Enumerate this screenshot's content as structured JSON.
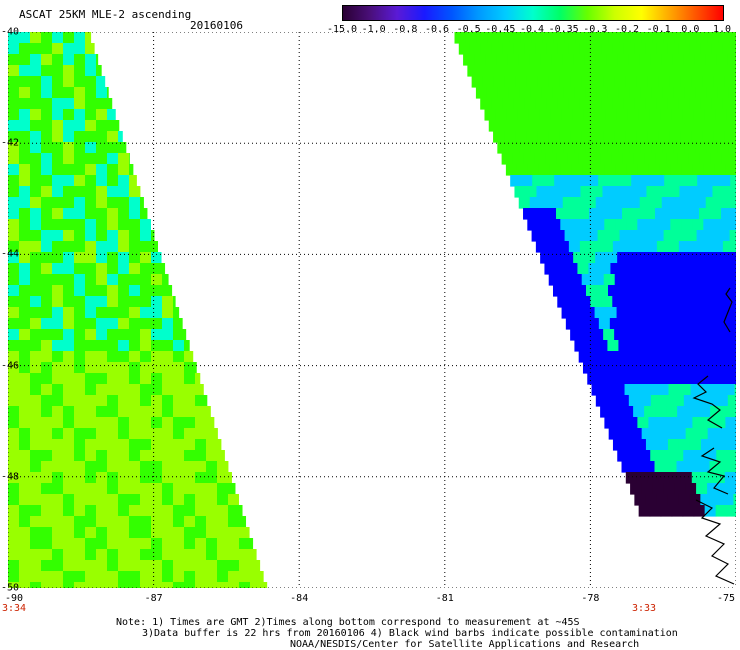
{
  "title": "ASCAT 25KM MLE-2 ascending",
  "date": "20160106",
  "colorbar": {
    "labels": [
      "-15.0",
      "-1.0",
      "-0.8",
      "-0.6",
      "-0.5",
      "-0.45",
      "-0.4",
      "-0.35",
      "-0.3",
      "-0.2",
      "-0.1",
      "0.0",
      "1.0"
    ],
    "colors": [
      "#2a0033",
      "#4a0f7a",
      "#5a1ad6",
      "#1a1aff",
      "#0055ff",
      "#0099ff",
      "#00ccff",
      "#00ffcc",
      "#00ff66",
      "#66ff00",
      "#ccff00",
      "#ffff00",
      "#ffaa00",
      "#ff5500",
      "#ff0000"
    ]
  },
  "map": {
    "lat_labels": [
      "-40",
      "-42",
      "-44",
      "-46",
      "-48",
      "-50"
    ],
    "lon_labels": [
      "-90",
      "-87",
      "-84",
      "-81",
      "-78",
      "-75"
    ],
    "lat_range": [
      -40,
      -50
    ],
    "lon_range": [
      -90,
      -75
    ],
    "grid": true,
    "swaths": [
      {
        "name": "west",
        "edge_lon_at_top": -88.3,
        "edge_lon_at_bottom": -84.6,
        "dominant_colors": [
          "#33ff00",
          "#99ff00",
          "#00ffcc"
        ]
      },
      {
        "name": "east",
        "edge_lon_at_top": -80.8,
        "edge_lon_at_bottom": -76.3,
        "dominant_colors": [
          "#33ff00",
          "#0000ff",
          "#2a0033"
        ]
      }
    ],
    "coastline_color": "#000000"
  },
  "times": {
    "left": "3:34",
    "right": "3:33"
  },
  "notes": {
    "line1": "Note: 1) Times are GMT 2)Times along bottom correspond to measurement at ~45S",
    "line2": "3)Data buffer is 22 hrs from 20160106 4) Black wind barbs indicate possible contamination",
    "line3": "NOAA/NESDIS/Center for Satellite Applications and Research"
  }
}
